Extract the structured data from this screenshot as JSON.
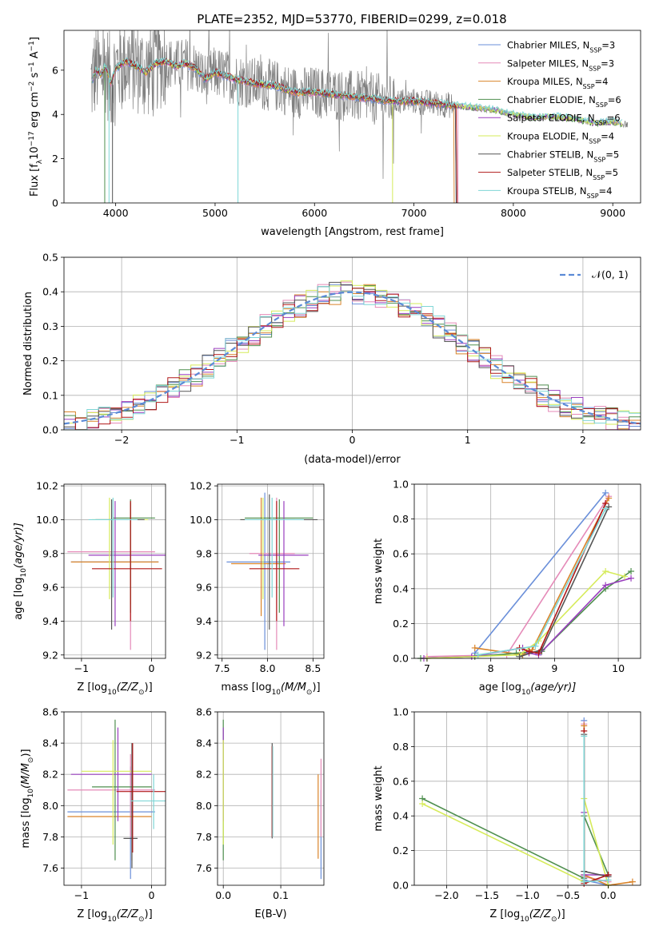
{
  "figure": {
    "title": "PLATE=2352, MJD=53770, FIBERID=0299, z=0.018"
  },
  "series": [
    {
      "name": "Chabrier MILES, N",
      "nssp": "=3",
      "color": "#6a8fd9"
    },
    {
      "name": "Salpeter MILES, N",
      "nssp": "=3",
      "color": "#e58ab8"
    },
    {
      "name": "Kroupa MILES, N",
      "nssp": "=4",
      "color": "#d9842a"
    },
    {
      "name": "Chabrier ELODIE, N",
      "nssp": "=6",
      "color": "#4f8f4f"
    },
    {
      "name": "Salpeter ELODIE, N",
      "nssp": "=6",
      "color": "#9a3fbf"
    },
    {
      "name": "Kroupa ELODIE, N",
      "nssp": "=4",
      "color": "#d6eb5a"
    },
    {
      "name": "Chabrier STELIB, N",
      "nssp": "=5",
      "color": "#555555"
    },
    {
      "name": "Salpeter STELIB, N",
      "nssp": "=5",
      "color": "#b01818"
    },
    {
      "name": "Kroupa STELIB, N",
      "nssp": "=4",
      "color": "#7fd6d6"
    }
  ],
  "chart_data": [
    {
      "id": "spectrum",
      "type": "line",
      "xlabel": "wavelength [Angstrom, rest frame]",
      "ylabel": "Flux [f",
      "ylabel_unit": "10",
      "ylabel_exp": "−17",
      "ylabel_tail": " erg cm",
      "ylabel_exp2": "−2",
      "ylabel_s": " s",
      "ylabel_exp3": "−1",
      "ylabel_end": " A",
      "ylabel_exp4": "−1",
      "ylabel_close": "]",
      "xlim": [
        3480,
        9280
      ],
      "ylim": [
        0,
        7.8
      ],
      "xticks": [
        4000,
        5000,
        6000,
        7000,
        8000,
        9000
      ],
      "yticks": [
        0,
        2,
        4,
        6
      ],
      "data_color": "#808080",
      "model_x": [
        3750,
        3800,
        3850,
        3900,
        3950,
        4000,
        4100,
        4200,
        4300,
        4400,
        4500,
        4600,
        4700,
        4800,
        4900,
        5000,
        5200,
        5400,
        5600,
        5800,
        6000,
        6200,
        6400,
        6600,
        6800,
        7000,
        7200,
        7400,
        7600,
        7800,
        8000,
        8200,
        8400,
        8600,
        8800,
        9000,
        9200
      ],
      "model_y": [
        5.4,
        6.0,
        5.8,
        6.2,
        5.4,
        6.1,
        6.4,
        6.2,
        5.9,
        6.3,
        6.4,
        6.2,
        6.3,
        6.1,
        5.6,
        5.9,
        5.6,
        5.4,
        5.3,
        5.0,
        5.0,
        4.9,
        4.8,
        4.7,
        4.6,
        4.6,
        4.5,
        4.4,
        4.3,
        4.2,
        4.0,
        3.85,
        3.9,
        3.8,
        3.6,
        3.65,
        3.5
      ],
      "cutoffs": [
        7420,
        7440,
        7400,
        9100,
        9100,
        9100,
        7420,
        7430,
        9100
      ]
    },
    {
      "id": "residuals",
      "type": "histogram",
      "xlabel": "(data-model)/error",
      "ylabel": "Normed distribution",
      "xlim": [
        -2.5,
        2.5
      ],
      "ylim": [
        0,
        0.5
      ],
      "xticks": [
        -2,
        -1,
        0,
        1,
        2
      ],
      "xtick_labels": [
        "−2",
        "−1",
        "0",
        "1",
        "2"
      ],
      "yticks": [
        0.0,
        0.1,
        0.2,
        0.3,
        0.4,
        0.5
      ],
      "ytick_labels": [
        "0.0",
        "0.1",
        "0.2",
        "0.3",
        "0.4",
        "0.5"
      ],
      "bin_width": 0.1,
      "legend_label": "𝒩(0, 1)",
      "legend_color": "#5b8ad6"
    },
    {
      "id": "age_vs_Z",
      "type": "errorbar",
      "xlabel": "Z [log",
      "xlabel_sub": "10",
      "xlabel_tail": "(Z/Z",
      "xlabel_end": ")]",
      "ylabel": "age  [log",
      "ylabel_sub": "10",
      "ylabel_tail": "(age/yr)]",
      "xlim": [
        -1.25,
        0.2
      ],
      "ylim": [
        9.18,
        10.21
      ],
      "xticks": [
        -1,
        0
      ],
      "xtick_labels": [
        "−1",
        "0"
      ],
      "yticks": [
        9.2,
        9.4,
        9.6,
        9.8,
        10.0,
        10.2
      ],
      "ytick_labels": [
        "9.2",
        "9.4",
        "9.6",
        "9.8",
        "10.0",
        "10.2"
      ],
      "points": [
        {
          "s": 0,
          "x": -0.3,
          "y": 9.75,
          "xl": -1.15,
          "xh": 0.1,
          "yl": 9.6,
          "yh": 10.1
        },
        {
          "s": 1,
          "x": -0.3,
          "y": 9.81,
          "xl": -1.2,
          "xh": 0.05,
          "yl": 9.23,
          "yh": 10.1
        },
        {
          "s": 2,
          "x": -0.3,
          "y": 9.75,
          "xl": -1.15,
          "xh": 0.1,
          "yl": 9.5,
          "yh": 10.1
        },
        {
          "s": 3,
          "x": -0.3,
          "y": 10.01,
          "xl": -0.55,
          "xh": 0.05,
          "yl": 9.45,
          "yh": 10.12
        },
        {
          "s": 4,
          "x": -0.52,
          "y": 9.79,
          "xl": -0.9,
          "xh": 0.2,
          "yl": 9.37,
          "yh": 10.11
        },
        {
          "s": 5,
          "x": -0.6,
          "y": 10.0,
          "xl": -0.85,
          "xh": -0.05,
          "yl": 9.53,
          "yh": 10.13
        },
        {
          "s": 6,
          "x": -0.57,
          "y": 10.0,
          "xl": -0.8,
          "xh": -0.1,
          "yl": 9.35,
          "yh": 10.12
        },
        {
          "s": 7,
          "x": -0.3,
          "y": 9.71,
          "xl": -0.85,
          "xh": 0.15,
          "yl": 9.4,
          "yh": 10.11
        },
        {
          "s": 8,
          "x": -0.55,
          "y": 10.0,
          "xl": -0.9,
          "xh": -0.2,
          "yl": 9.54,
          "yh": 10.13
        }
      ]
    },
    {
      "id": "age_vs_mass",
      "type": "errorbar",
      "xlabel": "mass [log",
      "xlabel_sub": "10",
      "xlabel_tail": "(M/M",
      "xlabel_end": ")]",
      "xlim": [
        7.45,
        8.62
      ],
      "ylim": [
        9.18,
        10.21
      ],
      "xticks": [
        7.5,
        8.0,
        8.5
      ],
      "xtick_labels": [
        "7.5",
        "8.0",
        "8.5"
      ],
      "yticks": [
        9.2,
        9.4,
        9.6,
        9.8,
        10.0,
        10.2
      ],
      "ytick_labels": [
        "9.2",
        "9.4",
        "9.6",
        "9.8",
        "10.0",
        "10.2"
      ],
      "points": [
        {
          "s": 0,
          "x": 7.97,
          "y": 9.75,
          "xl": 7.55,
          "xh": 8.25,
          "yl": 9.23,
          "yh": 10.16
        },
        {
          "s": 1,
          "x": 8.1,
          "y": 9.8,
          "xl": 7.8,
          "xh": 8.3,
          "yl": 9.23,
          "yh": 10.13
        },
        {
          "s": 2,
          "x": 7.93,
          "y": 9.74,
          "xl": 7.6,
          "xh": 8.2,
          "yl": 9.43,
          "yh": 10.13
        },
        {
          "s": 3,
          "x": 8.13,
          "y": 10.01,
          "xl": 7.75,
          "xh": 8.5,
          "yl": 9.45,
          "yh": 10.12
        },
        {
          "s": 4,
          "x": 8.18,
          "y": 9.79,
          "xl": 7.9,
          "xh": 8.45,
          "yl": 9.37,
          "yh": 10.11
        },
        {
          "s": 5,
          "x": 7.95,
          "y": 10.0,
          "xl": 7.7,
          "xh": 8.3,
          "yl": 9.53,
          "yh": 10.13
        },
        {
          "s": 6,
          "x": 8.02,
          "y": 10.0,
          "xl": 7.7,
          "xh": 8.55,
          "yl": 9.35,
          "yh": 10.15
        },
        {
          "s": 7,
          "x": 8.1,
          "y": 9.71,
          "xl": 7.8,
          "xh": 8.35,
          "yl": 9.4,
          "yh": 10.11
        },
        {
          "s": 8,
          "x": 8.05,
          "y": 10.0,
          "xl": 7.75,
          "xh": 8.4,
          "yl": 9.54,
          "yh": 10.13
        }
      ]
    },
    {
      "id": "weight_vs_age",
      "type": "line",
      "xlabel": "age  [log",
      "xlabel_sub": "10",
      "xlabel_tail": "(age/yr)]",
      "ylabel": "mass weight",
      "xlim": [
        6.8,
        10.35
      ],
      "ylim": [
        0,
        1.0
      ],
      "xticks": [
        7,
        8,
        9,
        10
      ],
      "xtick_labels": [
        "7",
        "8",
        "9",
        "10"
      ],
      "yticks": [
        0.0,
        0.2,
        0.4,
        0.6,
        0.8,
        1.0
      ],
      "ytick_labels": [
        "0.0",
        "0.2",
        "0.4",
        "0.6",
        "0.8",
        "1.0"
      ],
      "lines": [
        {
          "s": 0,
          "x": [
            7.75,
            9.8
          ],
          "y": [
            0.03,
            0.95
          ]
        },
        {
          "s": 1,
          "x": [
            7.0,
            8.25,
            9.85
          ],
          "y": [
            0.01,
            0.02,
            0.93
          ]
        },
        {
          "s": 2,
          "x": [
            7.75,
            8.5,
            8.65,
            9.85
          ],
          "y": [
            0.06,
            0.02,
            0.05,
            0.92
          ]
        },
        {
          "s": 3,
          "x": [
            6.9,
            7.75,
            8.4,
            8.8,
            9.8,
            10.2
          ],
          "y": [
            0.0,
            0.01,
            0.03,
            0.04,
            0.4,
            0.5
          ]
        },
        {
          "s": 4,
          "x": [
            6.95,
            7.7,
            8.5,
            8.6,
            8.75,
            9.8,
            10.2
          ],
          "y": [
            0.0,
            0.01,
            0.06,
            0.03,
            0.02,
            0.42,
            0.46
          ]
        },
        {
          "s": 5,
          "x": [
            7.0,
            8.45,
            8.75,
            9.8,
            10.1
          ],
          "y": [
            0.0,
            0.02,
            0.1,
            0.5,
            0.47
          ]
        },
        {
          "s": 6,
          "x": [
            8.45,
            8.8,
            9.85
          ],
          "y": [
            0.01,
            0.05,
            0.87
          ]
        },
        {
          "s": 7,
          "x": [
            8.45,
            8.6,
            8.75,
            9.8
          ],
          "y": [
            0.06,
            0.04,
            0.03,
            0.89
          ]
        },
        {
          "s": 8,
          "x": [
            7.8,
            8.7,
            9.8
          ],
          "y": [
            0.02,
            0.07,
            0.86
          ]
        }
      ]
    },
    {
      "id": "mass_vs_Z",
      "type": "errorbar",
      "xlabel": "Z [log",
      "xlabel_sub": "10",
      "xlabel_tail": "(Z/Z",
      "xlabel_end": ")]",
      "ylabel": "mass [log",
      "ylabel_sub": "10",
      "ylabel_tail": "(M/M",
      "ylabel_end": ")]",
      "xlim": [
        -1.25,
        0.2
      ],
      "ylim": [
        7.49,
        8.6
      ],
      "xticks": [
        -1,
        0
      ],
      "xtick_labels": [
        "−1",
        "0"
      ],
      "yticks": [
        7.6,
        7.8,
        8.0,
        8.2,
        8.4,
        8.6
      ],
      "ytick_labels": [
        "7.6",
        "7.8",
        "8.0",
        "8.2",
        "8.4",
        "8.6"
      ],
      "points": [
        {
          "s": 0,
          "x": -0.3,
          "y": 7.96,
          "xl": -1.2,
          "xh": 0.05,
          "yl": 7.53,
          "yh": 8.25
        },
        {
          "s": 1,
          "x": -0.3,
          "y": 8.1,
          "xl": -1.2,
          "xh": 0.05,
          "yl": 7.8,
          "yh": 8.33
        },
        {
          "s": 2,
          "x": -0.28,
          "y": 7.93,
          "xl": -1.2,
          "xh": 0.0,
          "yl": 7.65,
          "yh": 8.2
        },
        {
          "s": 3,
          "x": -0.52,
          "y": 8.12,
          "xl": -0.85,
          "xh": 0.0,
          "yl": 7.65,
          "yh": 8.55
        },
        {
          "s": 4,
          "x": -0.48,
          "y": 8.2,
          "xl": -1.15,
          "xh": 0.0,
          "yl": 7.9,
          "yh": 8.5
        },
        {
          "s": 5,
          "x": -0.55,
          "y": 8.22,
          "xl": -1.0,
          "xh": 0.0,
          "yl": 7.75,
          "yh": 8.42
        },
        {
          "s": 6,
          "x": -0.28,
          "y": 7.79,
          "xl": -0.4,
          "xh": -0.2,
          "yl": 7.6,
          "yh": 8.4
        },
        {
          "s": 7,
          "x": -0.27,
          "y": 8.09,
          "xl": -0.5,
          "xh": 0.2,
          "yl": 7.7,
          "yh": 8.4
        },
        {
          "s": 8,
          "x": 0.03,
          "y": 8.03,
          "xl": -0.3,
          "xh": 0.2,
          "yl": 7.85,
          "yh": 8.2
        }
      ]
    },
    {
      "id": "mass_vs_EBV",
      "type": "errorbar",
      "xlabel": "E(B-V)",
      "xlim": [
        -0.01,
        0.175
      ],
      "ylim": [
        7.49,
        8.6
      ],
      "xticks": [
        0.0,
        0.1
      ],
      "xtick_labels": [
        "0.0",
        "0.1"
      ],
      "yticks": [
        7.6,
        7.8,
        8.0,
        8.2,
        8.4,
        8.6
      ],
      "ytick_labels": [
        "7.6",
        "7.8",
        "8.0",
        "8.2",
        "8.4",
        "8.6"
      ],
      "points": [
        {
          "s": 0,
          "x": 0.17,
          "y": 7.96,
          "xl": 0.17,
          "xh": 0.17,
          "yl": 7.53,
          "yh": 8.1
        },
        {
          "s": 1,
          "x": 0.17,
          "y": 8.1,
          "xl": 0.17,
          "xh": 0.17,
          "yl": 7.8,
          "yh": 8.3
        },
        {
          "s": 2,
          "x": 0.165,
          "y": 7.93,
          "xl": 0.165,
          "xh": 0.165,
          "yl": 7.66,
          "yh": 8.2
        },
        {
          "s": 3,
          "x": 0.0,
          "y": 8.1,
          "xl": 0.0,
          "xh": 0.0,
          "yl": 7.65,
          "yh": 8.55
        },
        {
          "s": 4,
          "x": 0.0,
          "y": 8.2,
          "xl": 0.0,
          "xh": 0.0,
          "yl": 7.9,
          "yh": 8.5
        },
        {
          "s": 5,
          "x": 0.0,
          "y": 8.1,
          "xl": 0.0,
          "xh": 0.0,
          "yl": 7.75,
          "yh": 8.42
        },
        {
          "s": 6,
          "x": 0.085,
          "y": 8.1,
          "xl": 0.085,
          "xh": 0.085,
          "yl": 7.79,
          "yh": 8.4
        },
        {
          "s": 7,
          "x": 0.085,
          "y": 8.1,
          "xl": 0.085,
          "xh": 0.085,
          "yl": 7.8,
          "yh": 8.38
        },
        {
          "s": 8,
          "x": 0.086,
          "y": 8.05,
          "xl": 0.086,
          "xh": 0.086,
          "yl": 7.8,
          "yh": 8.38
        }
      ]
    },
    {
      "id": "weight_vs_Z",
      "type": "line",
      "xlabel": "Z [log",
      "xlabel_sub": "10",
      "xlabel_tail": "(Z/Z",
      "xlabel_end": ")]",
      "ylabel": "mass weight",
      "xlim": [
        -2.4,
        0.4
      ],
      "ylim": [
        0,
        1.0
      ],
      "xticks": [
        -2.0,
        -1.5,
        -1.0,
        -0.5,
        0.0
      ],
      "xtick_labels": [
        "−2.0",
        "−1.5",
        "−1.0",
        "−0.5",
        "0.0"
      ],
      "yticks": [
        0.0,
        0.2,
        0.4,
        0.6,
        0.8,
        1.0
      ],
      "ytick_labels": [
        "0.0",
        "0.2",
        "0.4",
        "0.6",
        "0.8",
        "1.0"
      ],
      "lines": [
        {
          "s": 0,
          "x": [
            -0.3,
            -0.3,
            0.0
          ],
          "y": [
            0.95,
            0.03,
            0.0
          ]
        },
        {
          "s": 1,
          "x": [
            -0.3,
            -0.3,
            0.0
          ],
          "y": [
            0.93,
            0.05,
            0.02
          ]
        },
        {
          "s": 2,
          "x": [
            -0.3,
            -0.3,
            0.0,
            0.3
          ],
          "y": [
            0.92,
            0.06,
            0.0,
            0.02
          ]
        },
        {
          "s": 3,
          "x": [
            -2.3,
            -0.3,
            -0.3,
            0.0
          ],
          "y": [
            0.5,
            0.04,
            0.4,
            0.06
          ]
        },
        {
          "s": 4,
          "x": [
            -0.3,
            -0.3,
            0.0
          ],
          "y": [
            0.42,
            0.06,
            0.06
          ]
        },
        {
          "s": 5,
          "x": [
            -2.3,
            -0.3,
            -0.3,
            0.0
          ],
          "y": [
            0.47,
            0.02,
            0.5,
            0.0
          ]
        },
        {
          "s": 6,
          "x": [
            -0.3,
            -0.3,
            0.0
          ],
          "y": [
            0.87,
            0.08,
            0.05
          ]
        },
        {
          "s": 7,
          "x": [
            -0.3,
            -0.3,
            0.0
          ],
          "y": [
            0.89,
            0.01,
            0.06
          ]
        },
        {
          "s": 8,
          "x": [
            -0.3,
            -0.3,
            0.0
          ],
          "y": [
            0.86,
            0.02,
            0.03
          ]
        }
      ]
    }
  ]
}
